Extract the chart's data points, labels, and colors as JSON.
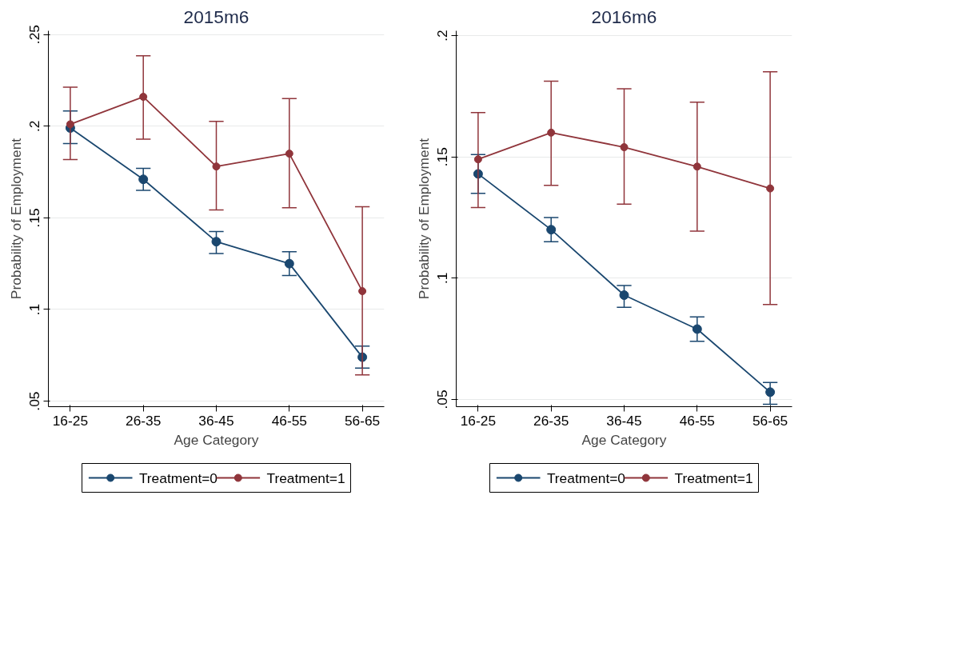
{
  "chart_data": [
    {
      "type": "line",
      "title": "2015m6",
      "xlabel": "Age Category",
      "ylabel": "Probability of Employment",
      "categories": [
        "16-25",
        "26-35",
        "36-45",
        "46-55",
        "56-65"
      ],
      "series": [
        {
          "name": "Treatment=0",
          "color": "#1a476f",
          "values": [
            0.199,
            0.171,
            0.137,
            0.125,
            0.074
          ],
          "errors": [
            [
              0.1905,
              0.2083
            ],
            [
              0.165,
              0.177
            ],
            [
              0.1305,
              0.1425
            ],
            [
              0.1185,
              0.1315
            ],
            [
              0.068,
              0.08
            ]
          ]
        },
        {
          "name": "Treatment=1",
          "color": "#90353b",
          "values": [
            0.201,
            0.216,
            0.178,
            0.185,
            0.11
          ],
          "errors": [
            [
              0.1818,
              0.2212
            ],
            [
              0.1929,
              0.2384
            ],
            [
              0.1543,
              0.2026
            ],
            [
              0.1555,
              0.215
            ],
            [
              0.0643,
              0.156
            ]
          ]
        }
      ],
      "ylim": [
        0.047,
        0.252
      ],
      "yticks": [
        {
          "value": 0.05,
          "label": ".05"
        },
        {
          "value": 0.1,
          "label": ".1"
        },
        {
          "value": 0.15,
          "label": ".15"
        },
        {
          "value": 0.2,
          "label": ".2"
        },
        {
          "value": 0.25,
          "label": ".25"
        }
      ],
      "grid": "y",
      "legend": "bottom",
      "marker": "circle",
      "line_style": "solid"
    },
    {
      "type": "line",
      "title": "2016m6",
      "xlabel": "Age Category",
      "ylabel": "Probability of Employment",
      "categories": [
        "16-25",
        "26-35",
        "36-45",
        "46-55",
        "56-65"
      ],
      "series": [
        {
          "name": "Treatment=0",
          "color": "#1a476f",
          "values": [
            0.143,
            0.12,
            0.093,
            0.079,
            0.053
          ],
          "errors": [
            [
              0.135,
              0.151
            ],
            [
              0.115,
              0.125
            ],
            [
              0.088,
              0.097
            ],
            [
              0.074,
              0.084
            ],
            [
              0.048,
              0.057
            ]
          ]
        },
        {
          "name": "Treatment=1",
          "color": "#90353b",
          "values": [
            0.149,
            0.16,
            0.154,
            0.146,
            0.137
          ],
          "errors": [
            [
              0.1291,
              0.1683
            ],
            [
              0.1383,
              0.1812
            ],
            [
              0.1305,
              0.1781
            ],
            [
              0.1194,
              0.1726
            ],
            [
              0.0891,
              0.1851
            ]
          ]
        }
      ],
      "ylim": [
        0.047,
        0.202
      ],
      "yticks": [
        {
          "value": 0.05,
          "label": ".05"
        },
        {
          "value": 0.1,
          "label": ".1"
        },
        {
          "value": 0.15,
          "label": ".15"
        },
        {
          "value": 0.2,
          "label": ".2"
        }
      ],
      "grid": "y",
      "legend": "bottom",
      "marker": "circle",
      "line_style": "solid"
    }
  ]
}
